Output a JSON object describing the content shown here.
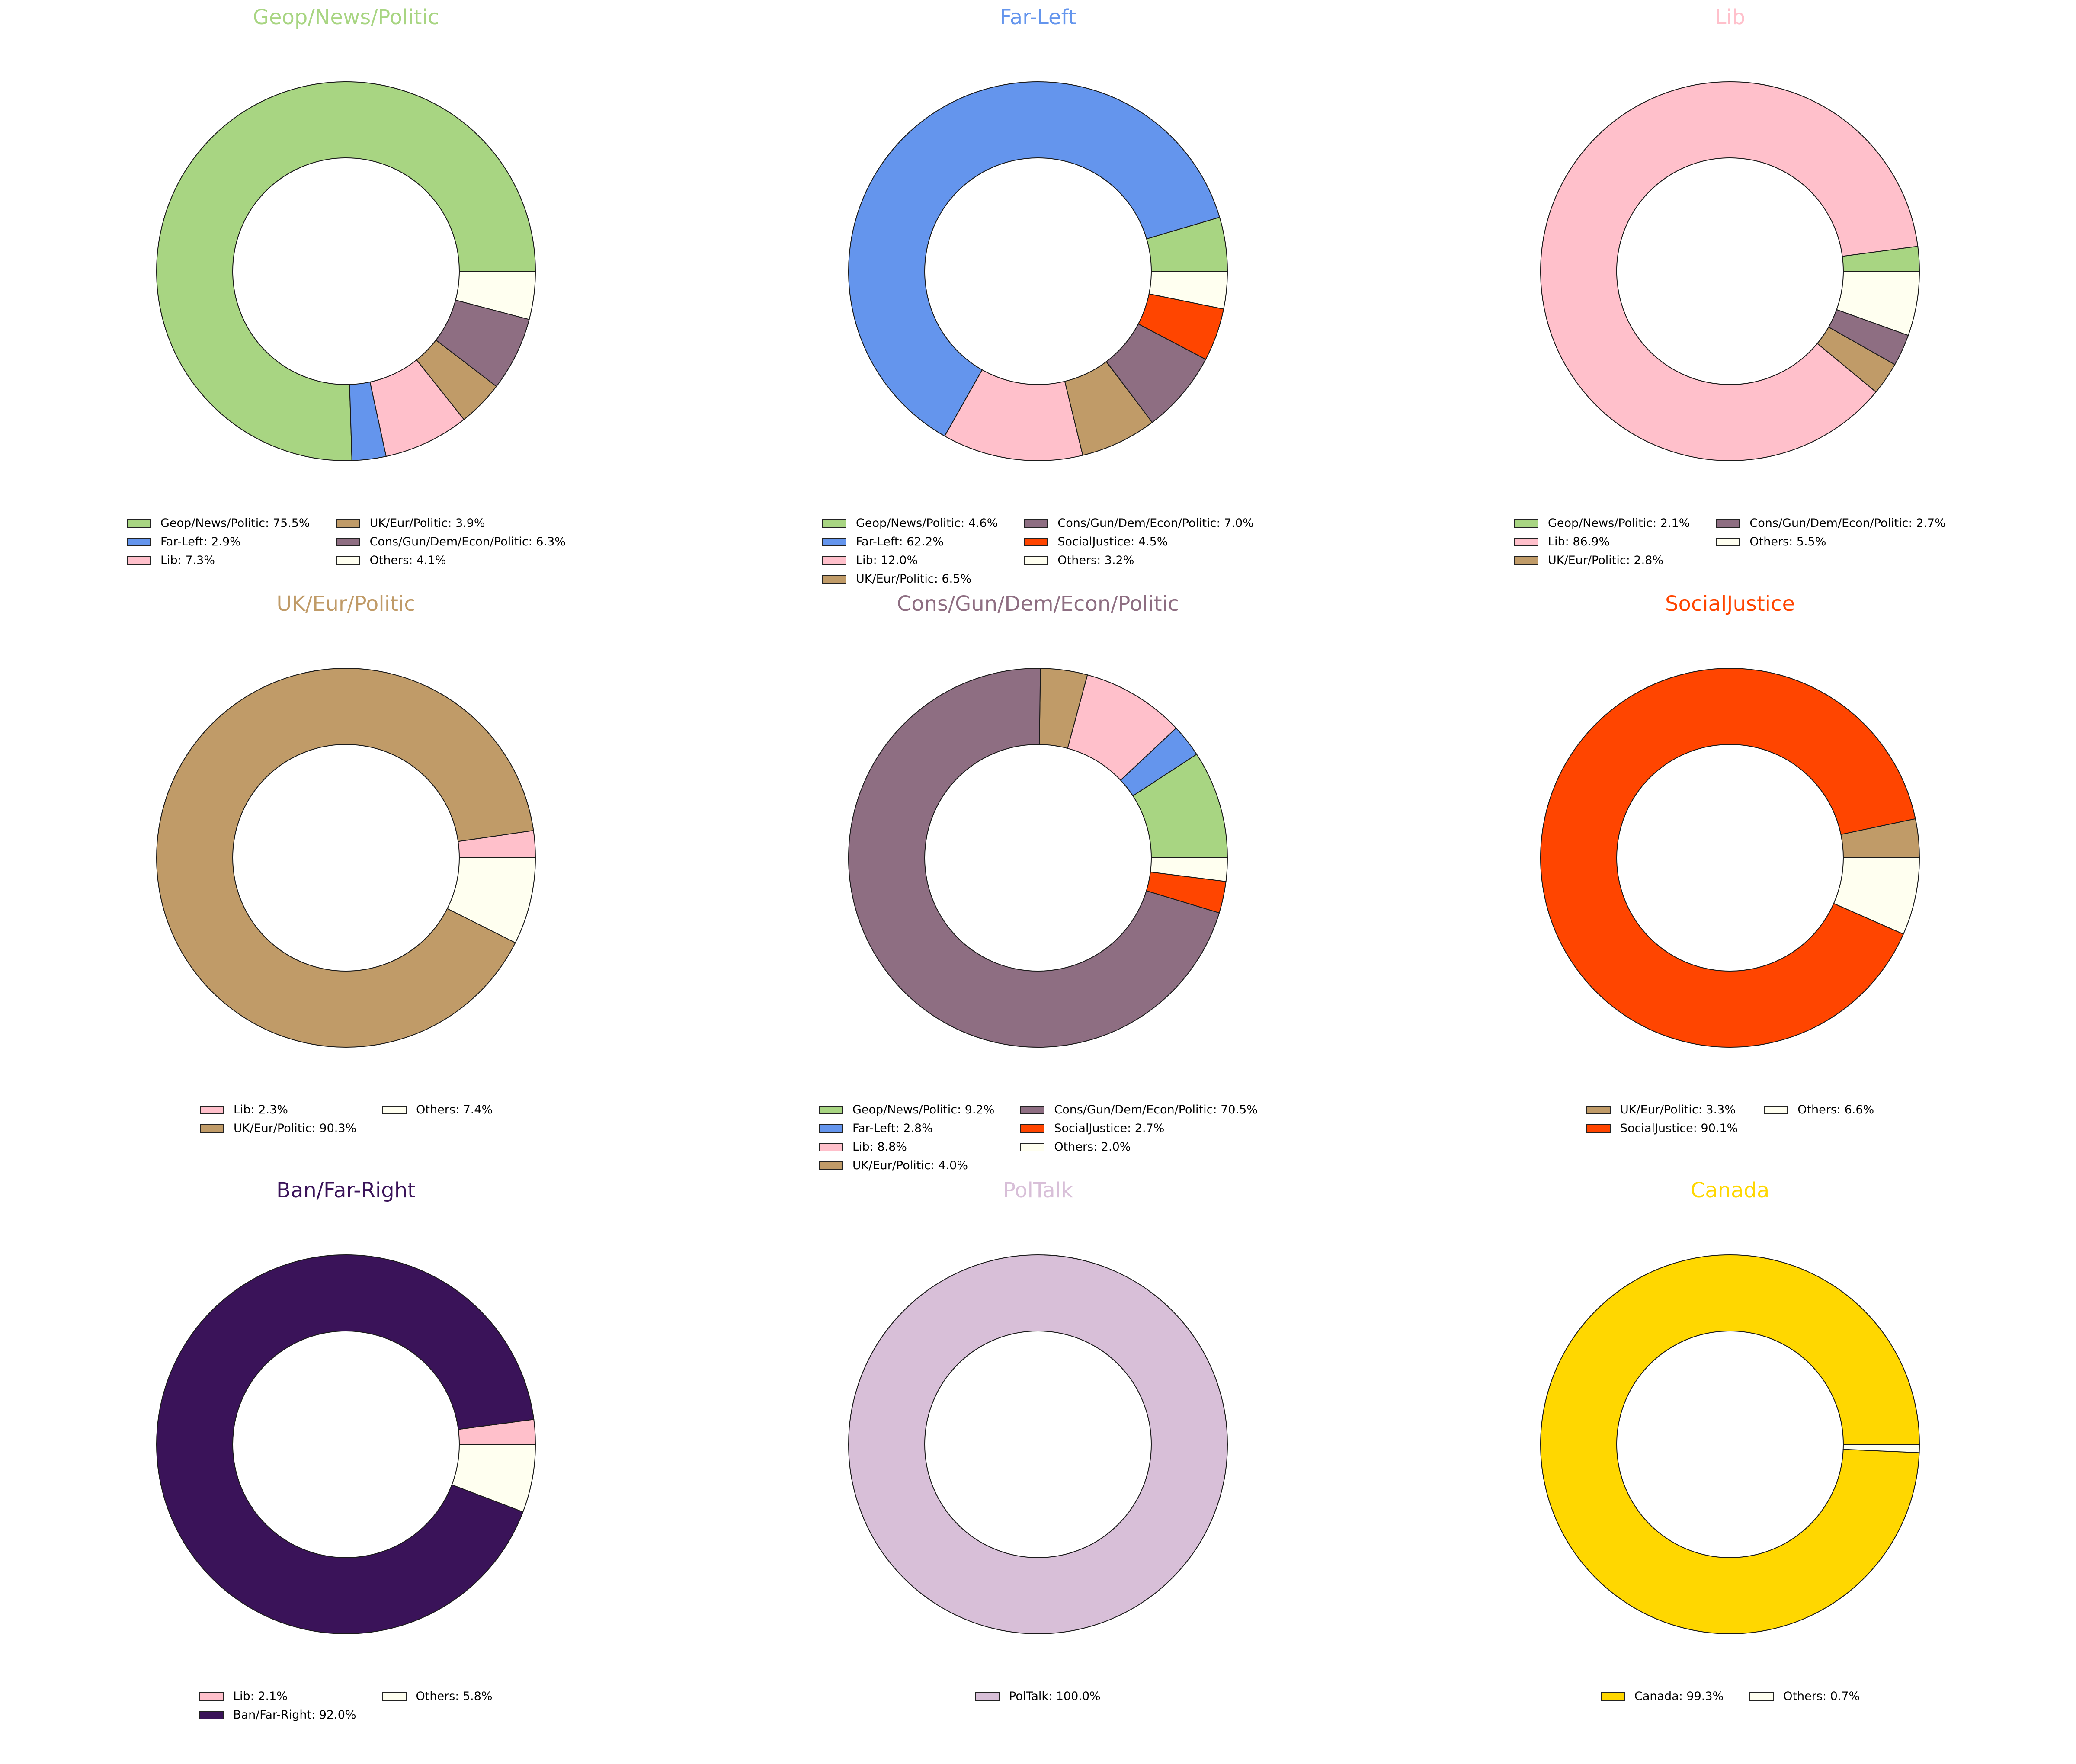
{
  "chart_data": [
    {
      "type": "pie",
      "donut": true,
      "title": "Geop/News/Politic",
      "title_color": "#a8d582",
      "slices": [
        {
          "label": "Geop/News/Politic",
          "value": 75.5,
          "color": "#a8d582",
          "legend": "Geop/News/Politic: 75.5%"
        },
        {
          "label": "Far-Left",
          "value": 2.9,
          "color": "#6495ed",
          "legend": "Far-Left: 2.9%"
        },
        {
          "label": "Lib",
          "value": 7.3,
          "color": "#ffc0cb",
          "legend": "Lib: 7.3%"
        },
        {
          "label": "UK/Eur/Politic",
          "value": 3.9,
          "color": "#c09b68",
          "legend": "UK/Eur/Politic: 3.9%"
        },
        {
          "label": "Cons/Gun/Dem/Econ/Politic",
          "value": 6.3,
          "color": "#8e6e82",
          "legend": "Cons/Gun/Dem/Econ/Politic: 6.3%"
        },
        {
          "label": "Others",
          "value": 4.1,
          "color": "#fffff0",
          "legend": "Others: 4.1%"
        }
      ],
      "legend_rows": 3
    },
    {
      "type": "pie",
      "donut": true,
      "title": "Far-Left",
      "title_color": "#6495ed",
      "slices": [
        {
          "label": "Geop/News/Politic",
          "value": 4.6,
          "color": "#a8d582",
          "legend": "Geop/News/Politic: 4.6%"
        },
        {
          "label": "Far-Left",
          "value": 62.2,
          "color": "#6495ed",
          "legend": "Far-Left: 62.2%"
        },
        {
          "label": "Lib",
          "value": 12.0,
          "color": "#ffc0cb",
          "legend": "Lib: 12.0%"
        },
        {
          "label": "UK/Eur/Politic",
          "value": 6.5,
          "color": "#c09b68",
          "legend": "UK/Eur/Politic: 6.5%"
        },
        {
          "label": "Cons/Gun/Dem/Econ/Politic",
          "value": 7.0,
          "color": "#8e6e82",
          "legend": "Cons/Gun/Dem/Econ/Politic: 7.0%"
        },
        {
          "label": "SocialJustice",
          "value": 4.5,
          "color": "#ff4500",
          "legend": "SocialJustice: 4.5%"
        },
        {
          "label": "Others",
          "value": 3.2,
          "color": "#fffff0",
          "legend": "Others: 3.2%"
        }
      ],
      "legend_rows": 4
    },
    {
      "type": "pie",
      "donut": true,
      "title": "Lib",
      "title_color": "#ffc0cb",
      "slices": [
        {
          "label": "Geop/News/Politic",
          "value": 2.1,
          "color": "#a8d582",
          "legend": "Geop/News/Politic: 2.1%"
        },
        {
          "label": "Lib",
          "value": 86.9,
          "color": "#ffc0cb",
          "legend": "Lib: 86.9%"
        },
        {
          "label": "UK/Eur/Politic",
          "value": 2.8,
          "color": "#c09b68",
          "legend": "UK/Eur/Politic: 2.8%"
        },
        {
          "label": "Cons/Gun/Dem/Econ/Politic",
          "value": 2.7,
          "color": "#8e6e82",
          "legend": "Cons/Gun/Dem/Econ/Politic: 2.7%"
        },
        {
          "label": "Others",
          "value": 5.5,
          "color": "#fffff0",
          "legend": "Others: 5.5%"
        }
      ],
      "legend_rows": 3
    },
    {
      "type": "pie",
      "donut": true,
      "title": "UK/Eur/Politic",
      "title_color": "#c09b68",
      "slices": [
        {
          "label": "Lib",
          "value": 2.3,
          "color": "#ffc0cb",
          "legend": "Lib: 2.3%"
        },
        {
          "label": "UK/Eur/Politic",
          "value": 90.3,
          "color": "#c09b68",
          "legend": "UK/Eur/Politic: 90.3%"
        },
        {
          "label": "Others",
          "value": 7.4,
          "color": "#fffff0",
          "legend": "Others: 7.4%"
        }
      ],
      "legend_rows": 2
    },
    {
      "type": "pie",
      "donut": true,
      "title": "Cons/Gun/Dem/Econ/Politic",
      "title_color": "#8e6e82",
      "slices": [
        {
          "label": "Geop/News/Politic",
          "value": 9.2,
          "color": "#a8d582",
          "legend": "Geop/News/Politic: 9.2%"
        },
        {
          "label": "Far-Left",
          "value": 2.8,
          "color": "#6495ed",
          "legend": "Far-Left: 2.8%"
        },
        {
          "label": "Lib",
          "value": 8.8,
          "color": "#ffc0cb",
          "legend": "Lib: 8.8%"
        },
        {
          "label": "UK/Eur/Politic",
          "value": 4.0,
          "color": "#c09b68",
          "legend": "UK/Eur/Politic: 4.0%"
        },
        {
          "label": "Cons/Gun/Dem/Econ/Politic",
          "value": 70.5,
          "color": "#8e6e82",
          "legend": "Cons/Gun/Dem/Econ/Politic: 70.5%"
        },
        {
          "label": "SocialJustice",
          "value": 2.7,
          "color": "#ff4500",
          "legend": "SocialJustice: 2.7%"
        },
        {
          "label": "Others",
          "value": 2.0,
          "color": "#fffff0",
          "legend": "Others: 2.0%"
        }
      ],
      "legend_rows": 4
    },
    {
      "type": "pie",
      "donut": true,
      "title": "SocialJustice",
      "title_color": "#ff4500",
      "slices": [
        {
          "label": "UK/Eur/Politic",
          "value": 3.3,
          "color": "#c09b68",
          "legend": "UK/Eur/Politic: 3.3%"
        },
        {
          "label": "SocialJustice",
          "value": 90.1,
          "color": "#ff4500",
          "legend": "SocialJustice: 90.1%"
        },
        {
          "label": "Others",
          "value": 6.6,
          "color": "#fffff0",
          "legend": "Others: 6.6%"
        }
      ],
      "legend_rows": 2
    },
    {
      "type": "pie",
      "donut": true,
      "title": "Ban/Far-Right",
      "title_color": "#3a1359",
      "slices": [
        {
          "label": "Lib",
          "value": 2.1,
          "color": "#ffc0cb",
          "legend": "Lib: 2.1%"
        },
        {
          "label": "Ban/Far-Right",
          "value": 92.0,
          "color": "#3a1359",
          "legend": "Ban/Far-Right: 92.0%"
        },
        {
          "label": "Others",
          "value": 5.8,
          "color": "#fffff0",
          "legend": "Others: 5.8%"
        }
      ],
      "legend_rows": 2
    },
    {
      "type": "pie",
      "donut": true,
      "title": "PolTalk",
      "title_color": "#d8bfd8",
      "slices": [
        {
          "label": "PolTalk",
          "value": 100.0,
          "color": "#d8bfd8",
          "legend": "PolTalk: 100.0%"
        }
      ],
      "legend_rows": 1
    },
    {
      "type": "pie",
      "donut": true,
      "title": "Canada",
      "title_color": "#ffd700",
      "slices": [
        {
          "label": "Canada",
          "value": 99.3,
          "color": "#ffd700",
          "legend": "Canada: 99.3%"
        },
        {
          "label": "Others",
          "value": 0.7,
          "color": "#fffff0",
          "legend": "Others: 0.7%"
        }
      ],
      "legend_rows": 1
    }
  ]
}
